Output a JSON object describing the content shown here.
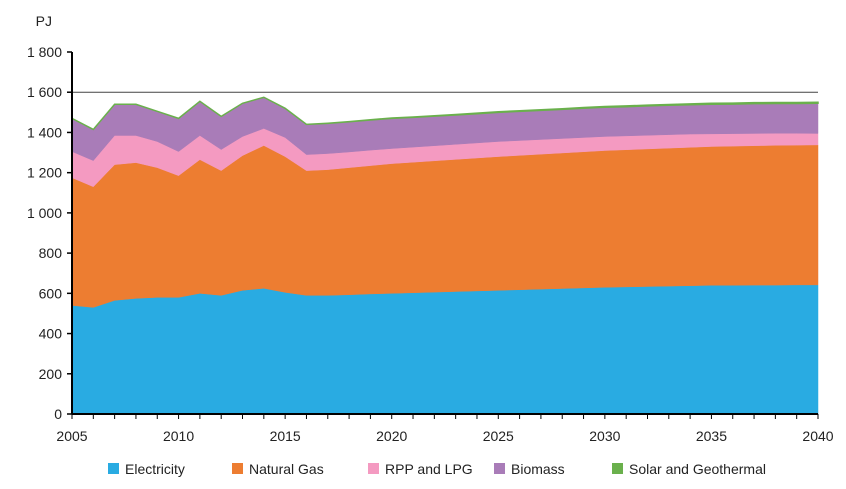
{
  "chart_data": {
    "type": "area",
    "stacked": true,
    "title": "",
    "ylabel": "PJ",
    "xlabel": "",
    "ylim": [
      0,
      1800
    ],
    "xlim": [
      2005,
      2040
    ],
    "y_ticks": [
      "0",
      "200",
      "400",
      "600",
      "800",
      "1 000",
      "1 200",
      "1 400",
      "1 600",
      "1 800"
    ],
    "x_ticks": [
      "2005",
      "2010",
      "2015",
      "2020",
      "2025",
      "2030",
      "2035",
      "2040"
    ],
    "grid": "single horizontal line at 1 600",
    "legend_position": "bottom",
    "x": [
      2005,
      2006,
      2007,
      2008,
      2009,
      2010,
      2011,
      2012,
      2013,
      2014,
      2015,
      2016,
      2017,
      2018,
      2019,
      2020,
      2021,
      2022,
      2023,
      2024,
      2025,
      2026,
      2027,
      2028,
      2029,
      2030,
      2031,
      2032,
      2033,
      2034,
      2035,
      2036,
      2037,
      2038,
      2039,
      2040
    ],
    "series": [
      {
        "name": "Electricity",
        "color": "#29abe2",
        "values": [
          540,
          530,
          565,
          575,
          580,
          580,
          600,
          590,
          615,
          625,
          605,
          590,
          590,
          593,
          597,
          600,
          603,
          606,
          609,
          612,
          615,
          618,
          621,
          624,
          627,
          630,
          632,
          634,
          636,
          638,
          640,
          640,
          641,
          641,
          642,
          642
        ]
      },
      {
        "name": "Natural Gas",
        "color": "#ed7d31",
        "values": [
          635,
          600,
          675,
          675,
          645,
          605,
          665,
          620,
          670,
          710,
          675,
          620,
          625,
          632,
          638,
          645,
          649,
          653,
          657,
          661,
          665,
          668,
          671,
          674,
          677,
          680,
          682,
          684,
          686,
          688,
          690,
          692,
          693,
          695,
          695,
          696
        ]
      },
      {
        "name": "RPP and LPG",
        "color": "#f49ac1",
        "values": [
          130,
          130,
          145,
          135,
          130,
          120,
          120,
          105,
          95,
          85,
          95,
          80,
          80,
          78,
          77,
          75,
          75,
          75,
          75,
          75,
          75,
          74,
          73,
          72,
          71,
          70,
          69,
          68,
          67,
          66,
          63,
          62,
          61,
          60,
          59,
          57
        ]
      },
      {
        "name": "Biomass",
        "color": "#a97cb8",
        "values": [
          165,
          155,
          155,
          155,
          150,
          165,
          170,
          165,
          165,
          155,
          145,
          150,
          150,
          150,
          150,
          150,
          148,
          147,
          146,
          145,
          145,
          145,
          145,
          145,
          145,
          145,
          145,
          146,
          146,
          146,
          147,
          147,
          148,
          148,
          148,
          150
        ]
      },
      {
        "name": "Solar and Geothermal",
        "color": "#6ab04c",
        "values": [
          0,
          0,
          0,
          0,
          0,
          0,
          0,
          0,
          0,
          0,
          0,
          0,
          1,
          1,
          1,
          2,
          2,
          2,
          2,
          3,
          3,
          3,
          3,
          3,
          4,
          4,
          4,
          4,
          4,
          4,
          5,
          5,
          5,
          5,
          5,
          5
        ]
      }
    ]
  }
}
